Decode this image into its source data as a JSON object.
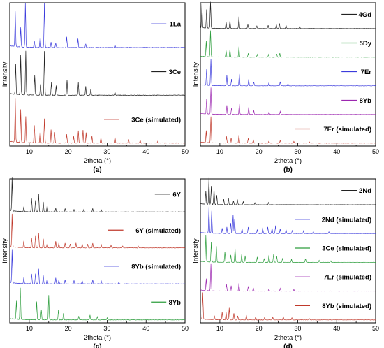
{
  "chart_data": [
    {
      "type": "line",
      "panel_label": "(a)",
      "xlabel": "2theta (°)",
      "ylabel": "Intensity",
      "xlim": [
        5,
        50
      ],
      "xticks": [
        10,
        20,
        30,
        40,
        50
      ],
      "series": [
        {
          "name": "1La",
          "color": "#3b3bdc",
          "peaks": [
            [
              6.4,
              0.8
            ],
            [
              7.8,
              0.45
            ],
            [
              9.0,
              1.0
            ],
            [
              11.3,
              0.15
            ],
            [
              12.8,
              0.25
            ],
            [
              13.9,
              1.0
            ],
            [
              15.6,
              0.12
            ],
            [
              16.8,
              0.1
            ],
            [
              19.6,
              0.25
            ],
            [
              22.5,
              0.2
            ],
            [
              24.5,
              0.08
            ],
            [
              32.0,
              0.06
            ]
          ]
        },
        {
          "name": "3Ce",
          "color": "#222222",
          "peaks": [
            [
              6.5,
              0.7
            ],
            [
              7.8,
              0.9
            ],
            [
              9.1,
              1.0
            ],
            [
              11.4,
              0.45
            ],
            [
              12.9,
              0.25
            ],
            [
              13.9,
              1.0
            ],
            [
              15.7,
              0.3
            ],
            [
              16.9,
              0.22
            ],
            [
              19.7,
              0.35
            ],
            [
              22.6,
              0.3
            ],
            [
              24.5,
              0.2
            ],
            [
              25.8,
              0.15
            ],
            [
              32.0,
              0.07
            ]
          ]
        },
        {
          "name": "3Ce (simulated)",
          "color": "#c0392b",
          "peaks": [
            [
              6.4,
              1.0
            ],
            [
              7.8,
              0.75
            ],
            [
              9.1,
              0.6
            ],
            [
              11.3,
              0.4
            ],
            [
              12.8,
              0.28
            ],
            [
              13.9,
              0.55
            ],
            [
              15.6,
              0.3
            ],
            [
              16.5,
              0.25
            ],
            [
              19.6,
              0.2
            ],
            [
              21.4,
              0.15
            ],
            [
              22.6,
              0.28
            ],
            [
              23.8,
              0.3
            ],
            [
              24.6,
              0.24
            ],
            [
              26.1,
              0.16
            ],
            [
              28.4,
              0.12
            ],
            [
              32.0,
              0.14
            ],
            [
              35.5,
              0.08
            ],
            [
              38.5,
              0.06
            ],
            [
              43.0,
              0.04
            ]
          ]
        }
      ]
    },
    {
      "type": "line",
      "panel_label": "(b)",
      "xlabel": "2theta (°)",
      "ylabel": "Intensity",
      "xlim": [
        5,
        50
      ],
      "xticks": [
        10,
        20,
        30,
        40,
        50
      ],
      "series": [
        {
          "name": "4Gd",
          "color": "#222222",
          "peaks": [
            [
              5.4,
              0.9
            ],
            [
              6.6,
              0.7
            ],
            [
              7.6,
              1.0
            ],
            [
              11.6,
              0.25
            ],
            [
              12.6,
              0.3
            ],
            [
              14.9,
              0.45
            ],
            [
              17.2,
              0.15
            ],
            [
              19.5,
              0.1
            ],
            [
              22.4,
              0.12
            ],
            [
              24.5,
              0.15
            ],
            [
              25.3,
              0.2
            ],
            [
              27.0,
              0.12
            ],
            [
              30.5,
              0.08
            ]
          ]
        },
        {
          "name": "5Dy",
          "color": "#2e9e3e",
          "peaks": [
            [
              6.5,
              0.6
            ],
            [
              7.6,
              1.0
            ],
            [
              11.6,
              0.25
            ],
            [
              12.6,
              0.3
            ],
            [
              14.9,
              0.4
            ],
            [
              17.3,
              0.15
            ],
            [
              19.6,
              0.1
            ],
            [
              22.5,
              0.1
            ],
            [
              24.6,
              0.12
            ],
            [
              25.4,
              0.15
            ]
          ]
        },
        {
          "name": "7Er",
          "color": "#3b3bdc",
          "peaks": [
            [
              6.6,
              0.6
            ],
            [
              7.7,
              1.0
            ],
            [
              11.8,
              0.4
            ],
            [
              13.0,
              0.25
            ],
            [
              15.0,
              0.45
            ],
            [
              17.4,
              0.25
            ],
            [
              18.7,
              0.15
            ],
            [
              22.6,
              0.12
            ],
            [
              25.5,
              0.15
            ],
            [
              27.5,
              0.08
            ]
          ]
        },
        {
          "name": "8Yb",
          "color": "#9c27b0",
          "peaks": [
            [
              6.6,
              0.55
            ],
            [
              7.7,
              1.0
            ],
            [
              11.8,
              0.35
            ],
            [
              13.0,
              0.25
            ],
            [
              15.0,
              0.4
            ],
            [
              17.4,
              0.28
            ],
            [
              18.7,
              0.15
            ],
            [
              22.6,
              0.1
            ],
            [
              25.5,
              0.12
            ]
          ]
        },
        {
          "name": "7Er (simulated)",
          "color": "#c0392b",
          "peaks": [
            [
              6.5,
              0.45
            ],
            [
              7.7,
              1.0
            ],
            [
              11.7,
              0.25
            ],
            [
              12.9,
              0.2
            ],
            [
              14.9,
              0.3
            ],
            [
              17.3,
              0.18
            ],
            [
              18.6,
              0.12
            ],
            [
              22.6,
              0.08
            ],
            [
              25.5,
              0.1
            ],
            [
              29.0,
              0.06
            ],
            [
              33.0,
              0.05
            ]
          ]
        }
      ]
    },
    {
      "type": "line",
      "panel_label": "(c)",
      "xlabel": "2theta (°)",
      "ylabel": "Intensity",
      "xlim": [
        5,
        50
      ],
      "xticks": [
        10,
        20,
        30,
        40,
        50
      ],
      "series": [
        {
          "name": "6Y",
          "color": "#222222",
          "peaks": [
            [
              5.6,
              1.0
            ],
            [
              8.6,
              0.15
            ],
            [
              10.6,
              0.4
            ],
            [
              11.6,
              0.35
            ],
            [
              12.4,
              0.55
            ],
            [
              13.6,
              0.3
            ],
            [
              14.6,
              0.2
            ],
            [
              16.8,
              0.12
            ],
            [
              19.2,
              0.1
            ],
            [
              21.5,
              0.08
            ],
            [
              24.0,
              0.08
            ],
            [
              26.3,
              0.1
            ],
            [
              28.5,
              0.06
            ]
          ]
        },
        {
          "name": "6Y (simulated)",
          "color": "#c0392b",
          "peaks": [
            [
              5.6,
              1.0
            ],
            [
              8.6,
              0.2
            ],
            [
              10.6,
              0.3
            ],
            [
              11.6,
              0.35
            ],
            [
              12.4,
              0.45
            ],
            [
              13.6,
              0.28
            ],
            [
              14.6,
              0.15
            ],
            [
              16.8,
              0.2
            ],
            [
              17.6,
              0.15
            ],
            [
              19.2,
              0.15
            ],
            [
              20.5,
              0.12
            ],
            [
              22.0,
              0.15
            ],
            [
              23.6,
              0.12
            ],
            [
              25.0,
              0.12
            ],
            [
              26.3,
              0.14
            ],
            [
              28.5,
              0.1
            ],
            [
              31.0,
              0.08
            ],
            [
              34.0,
              0.06
            ],
            [
              38.0,
              0.05
            ]
          ]
        },
        {
          "name": "8Yb (simulated)",
          "color": "#3b3bdc",
          "peaks": [
            [
              5.6,
              1.0
            ],
            [
              8.6,
              0.18
            ],
            [
              10.6,
              0.3
            ],
            [
              11.6,
              0.3
            ],
            [
              12.4,
              0.45
            ],
            [
              13.6,
              0.25
            ],
            [
              14.6,
              0.15
            ],
            [
              16.8,
              0.18
            ],
            [
              17.6,
              0.12
            ],
            [
              19.2,
              0.12
            ],
            [
              21.5,
              0.1
            ],
            [
              23.6,
              0.1
            ],
            [
              26.3,
              0.12
            ],
            [
              28.5,
              0.08
            ],
            [
              33.0,
              0.05
            ]
          ]
        },
        {
          "name": "8Yb",
          "color": "#2e9e3e",
          "peaks": [
            [
              6.7,
              0.55
            ],
            [
              7.7,
              0.95
            ],
            [
              11.9,
              0.55
            ],
            [
              13.1,
              0.3
            ],
            [
              15.0,
              0.75
            ],
            [
              17.5,
              0.3
            ],
            [
              18.8,
              0.2
            ],
            [
              22.7,
              0.12
            ],
            [
              25.6,
              0.15
            ],
            [
              27.5,
              0.1
            ],
            [
              30.0,
              0.06
            ]
          ]
        }
      ]
    },
    {
      "type": "line",
      "panel_label": "(d)",
      "xlabel": "2theta (°)",
      "ylabel": "Intensity",
      "xlim": [
        5,
        50
      ],
      "xticks": [
        10,
        20,
        30,
        40,
        50
      ],
      "series": [
        {
          "name": "2Nd",
          "color": "#222222",
          "peaks": [
            [
              6.4,
              0.5
            ],
            [
              7.2,
              1.0
            ],
            [
              7.8,
              0.7
            ],
            [
              8.5,
              0.6
            ],
            [
              9.2,
              0.35
            ],
            [
              11.0,
              0.2
            ],
            [
              12.2,
              0.25
            ],
            [
              13.5,
              0.15
            ],
            [
              14.5,
              0.2
            ],
            [
              16.0,
              0.12
            ],
            [
              19.0,
              0.08
            ],
            [
              22.5,
              0.08
            ]
          ]
        },
        {
          "name": "2Nd (simulated)",
          "color": "#3b3bdc",
          "peaks": [
            [
              7.2,
              1.0
            ],
            [
              7.9,
              0.85
            ],
            [
              10.6,
              0.2
            ],
            [
              11.8,
              0.25
            ],
            [
              12.8,
              0.4
            ],
            [
              13.4,
              0.7
            ],
            [
              13.8,
              0.55
            ],
            [
              15.7,
              0.2
            ],
            [
              17.3,
              0.25
            ],
            [
              19.6,
              0.15
            ],
            [
              21.0,
              0.22
            ],
            [
              22.3,
              0.25
            ],
            [
              23.4,
              0.22
            ],
            [
              24.3,
              0.3
            ],
            [
              25.5,
              0.18
            ],
            [
              27.0,
              0.15
            ],
            [
              28.6,
              0.12
            ],
            [
              31.5,
              0.1
            ],
            [
              34.0,
              0.08
            ],
            [
              38.0,
              0.06
            ]
          ]
        },
        {
          "name": "3Ce (simulated)",
          "color": "#2e9e3e",
          "peaks": [
            [
              6.4,
              1.0
            ],
            [
              7.8,
              0.75
            ],
            [
              9.1,
              0.6
            ],
            [
              11.3,
              0.4
            ],
            [
              12.8,
              0.28
            ],
            [
              13.9,
              0.55
            ],
            [
              15.6,
              0.3
            ],
            [
              16.5,
              0.25
            ],
            [
              19.6,
              0.2
            ],
            [
              21.4,
              0.15
            ],
            [
              22.6,
              0.28
            ],
            [
              23.8,
              0.3
            ],
            [
              24.6,
              0.24
            ],
            [
              26.1,
              0.16
            ],
            [
              28.4,
              0.12
            ],
            [
              32.0,
              0.14
            ],
            [
              35.5,
              0.08
            ],
            [
              38.5,
              0.06
            ]
          ]
        },
        {
          "name": "7Er (simulated)",
          "color": "#9c27b0",
          "peaks": [
            [
              6.5,
              0.45
            ],
            [
              7.7,
              1.0
            ],
            [
              11.7,
              0.25
            ],
            [
              12.9,
              0.2
            ],
            [
              14.9,
              0.3
            ],
            [
              17.3,
              0.18
            ],
            [
              18.6,
              0.12
            ],
            [
              22.6,
              0.08
            ],
            [
              25.5,
              0.1
            ],
            [
              29.0,
              0.06
            ]
          ]
        },
        {
          "name": "8Yb (simulated)",
          "color": "#c0392b",
          "peaks": [
            [
              5.6,
              1.0
            ],
            [
              8.6,
              0.15
            ],
            [
              10.6,
              0.3
            ],
            [
              11.6,
              0.3
            ],
            [
              12.4,
              0.45
            ],
            [
              13.6,
              0.25
            ],
            [
              14.6,
              0.15
            ],
            [
              16.8,
              0.18
            ],
            [
              19.2,
              0.12
            ],
            [
              21.5,
              0.1
            ],
            [
              23.6,
              0.1
            ],
            [
              26.3,
              0.12
            ],
            [
              28.5,
              0.08
            ],
            [
              33.0,
              0.05
            ]
          ]
        }
      ]
    }
  ]
}
